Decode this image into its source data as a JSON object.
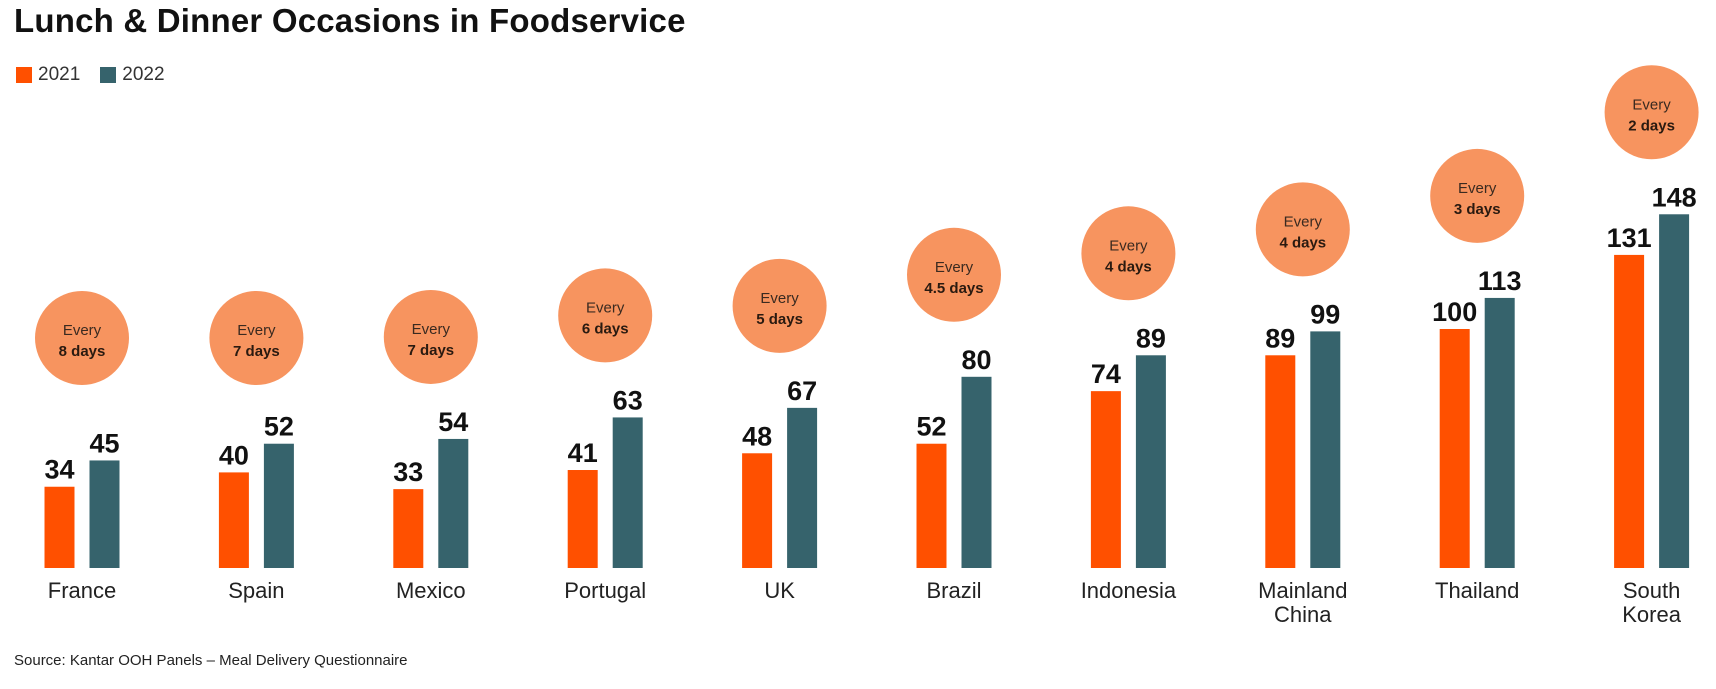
{
  "chart_data": {
    "type": "bar",
    "title": "Lunch & Dinner Occasions in Foodservice",
    "categories": [
      "France",
      "Spain",
      "Mexico",
      "Portugal",
      "UK",
      "Brazil",
      "Indonesia",
      "Mainland China",
      "Thailand",
      "South Korea"
    ],
    "category_lines": [
      [
        "France"
      ],
      [
        "Spain"
      ],
      [
        "Mexico"
      ],
      [
        "Portugal"
      ],
      [
        "UK"
      ],
      [
        "Brazil"
      ],
      [
        "Indonesia"
      ],
      [
        "Mainland",
        "China"
      ],
      [
        "Thailand"
      ],
      [
        "South",
        "Korea"
      ]
    ],
    "series": [
      {
        "name": "2021",
        "color": "#ff5000",
        "values": [
          34,
          40,
          33,
          41,
          48,
          52,
          74,
          89,
          100,
          131
        ]
      },
      {
        "name": "2022",
        "color": "#36636c",
        "values": [
          45,
          52,
          54,
          63,
          67,
          80,
          89,
          99,
          113,
          148
        ]
      }
    ],
    "annotations": [
      {
        "line1": "Every",
        "line2": "8 days"
      },
      {
        "line1": "Every",
        "line2": "7 days"
      },
      {
        "line1": "Every",
        "line2": "7 days"
      },
      {
        "line1": "Every",
        "line2": "6 days"
      },
      {
        "line1": "Every",
        "line2": "5 days"
      },
      {
        "line1": "Every",
        "line2": "4.5 days"
      },
      {
        "line1": "Every",
        "line2": "4 days"
      },
      {
        "line1": "Every",
        "line2": "4 days"
      },
      {
        "line1": "Every",
        "line2": "3 days"
      },
      {
        "line1": "Every",
        "line2": "2 days"
      }
    ],
    "bubble_color": "#f7945f",
    "legend": [
      "2021",
      "2022"
    ],
    "legend_position": "top-left",
    "xlabel": "",
    "ylabel": "",
    "grid": false,
    "ylim": [
      0,
      160
    ]
  },
  "source": "Source: Kantar OOH Panels – Meal Delivery Questionnaire"
}
